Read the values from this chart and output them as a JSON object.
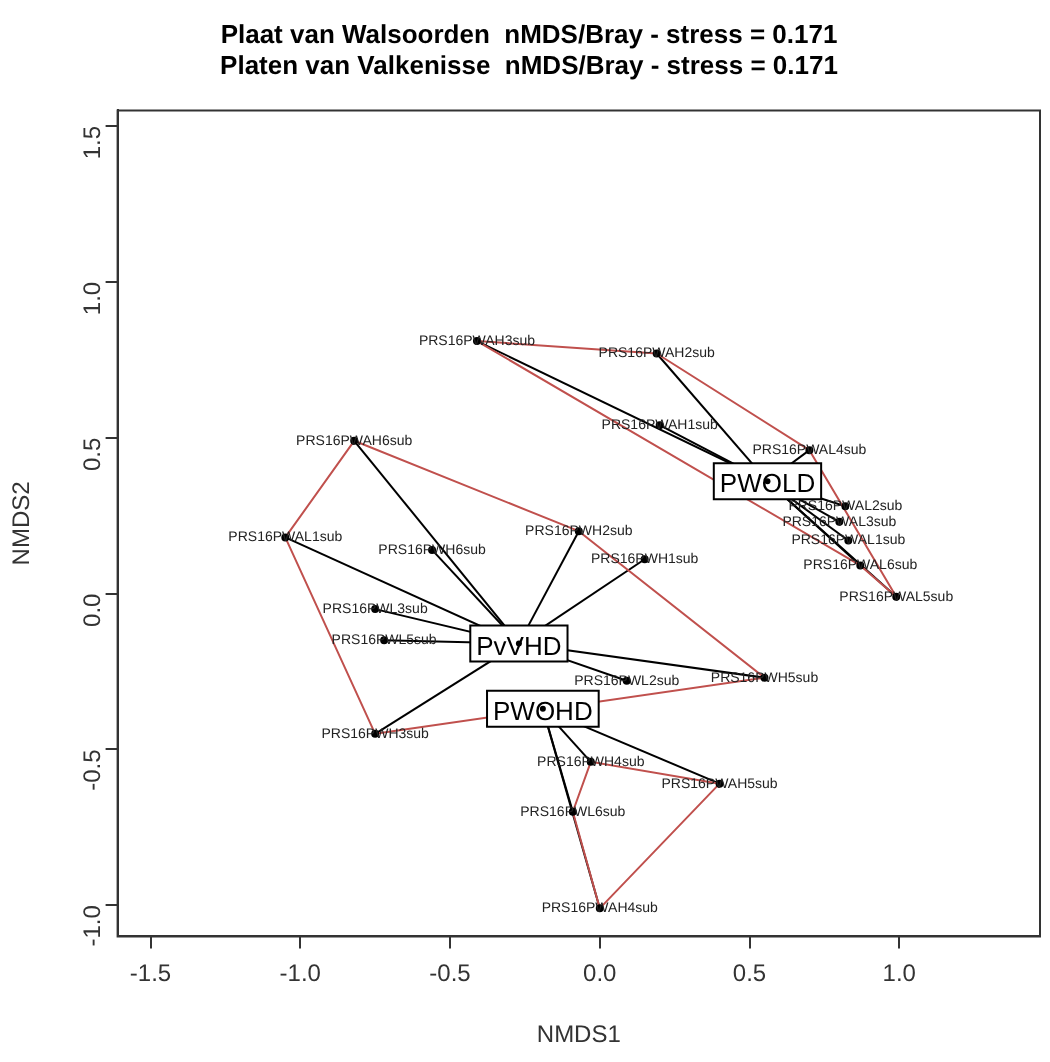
{
  "chart_data": {
    "type": "scatter",
    "title": "Plaat van Walsoorden  nMDS/Bray - stress = 0.171",
    "subtitle": "Platen van Valkenisse  nMDS/Bray - stress = 0.171",
    "xlabel": "NMDS1",
    "ylabel": "NMDS2",
    "xlim": [
      -1.61,
      1.47
    ],
    "ylim": [
      -1.1,
      1.55
    ],
    "xticks": [
      {
        "value": -1.5,
        "label": "-1.5"
      },
      {
        "value": -1.0,
        "label": "-1.0"
      },
      {
        "value": -0.5,
        "label": "-0.5"
      },
      {
        "value": 0.0,
        "label": "0.0"
      },
      {
        "value": 0.5,
        "label": "0.5"
      },
      {
        "value": 1.0,
        "label": "1.0"
      }
    ],
    "yticks": [
      {
        "value": -1.0,
        "label": "-1.0"
      },
      {
        "value": -0.5,
        "label": "-0.5"
      },
      {
        "value": 0.0,
        "label": "0.0"
      },
      {
        "value": 0.5,
        "label": "0.5"
      },
      {
        "value": 1.0,
        "label": "1.0"
      },
      {
        "value": 1.5,
        "label": "1.5"
      }
    ],
    "grid": false,
    "legend": false,
    "marker": "circle",
    "series": [
      {
        "color": "#000000",
        "x": [
          -0.41,
          0.19,
          0.2,
          0.7,
          0.82,
          0.8,
          0.83,
          0.87,
          0.99
        ],
        "values": [
          0.81,
          0.77,
          0.54,
          0.46,
          0.28,
          0.23,
          0.17,
          0.09,
          -0.01
        ],
        "value_labels": [
          "PRS16PWAH3sub",
          "PRS16PWAH2sub",
          "PRS16PWAH1sub",
          "PRS16PWAL4sub",
          "PRS16PWAL2sub",
          "PRS16PWAL3sub",
          "PRS16PWAL1sub",
          "PRS16PWAL6sub",
          "PRS16PWAL5sub"
        ]
      },
      {
        "color": "#000000",
        "x": [
          -0.82,
          -1.05,
          -0.07,
          -0.56,
          0.15,
          -0.75,
          -0.72,
          0.09,
          0.55,
          -0.75
        ],
        "values": [
          0.49,
          0.18,
          0.2,
          0.14,
          0.11,
          -0.05,
          -0.15,
          -0.28,
          -0.27,
          -0.45
        ],
        "value_labels": [
          "PRS16PWAH6sub",
          "PRS16PWAL1sub",
          "PRS16PWH2sub",
          "PRS16PWH6sub",
          "PRS16PWH1sub",
          "PRS16PWL3sub",
          "PRS16PWL5sub",
          "PRS16PWL2sub",
          "PRS16PWH5sub",
          "PRS16PWH3sub"
        ]
      },
      {
        "color": "#000000",
        "x": [
          -0.03,
          0.4,
          -0.09,
          0.0
        ],
        "values": [
          -0.54,
          -0.61,
          -0.7,
          -1.01
        ],
        "value_labels": [
          "PRS16PWH4sub",
          "PRS16PWAH5sub",
          "PRS16PWL6sub",
          "PRS16PWAH4sub"
        ]
      },
      {
        "color": "#000000",
        "x": [
          0.56,
          -0.27,
          -0.19
        ],
        "values": [
          0.36,
          -0.16,
          -0.37
        ],
        "value_labels": [
          "PWOLD",
          "PvVHD",
          "PWOHD"
        ]
      },
      {
        "type": "line",
        "marker": "none",
        "color": "#c0504d",
        "x": [
          -0.41,
          0.19,
          0.7,
          0.99
        ],
        "values": [
          0.81,
          0.77,
          0.46,
          -0.01
        ]
      },
      {
        "type": "line",
        "marker": "none",
        "color": "#c0504d",
        "x": [
          -0.41,
          0.87,
          0.99
        ],
        "values": [
          0.81,
          0.09,
          -0.01
        ]
      },
      {
        "type": "line",
        "marker": "none",
        "color": "#c0504d",
        "x": [
          -1.05,
          -0.82,
          -0.07,
          0.55
        ],
        "values": [
          0.18,
          0.49,
          0.2,
          -0.27
        ]
      },
      {
        "type": "line",
        "marker": "none",
        "color": "#c0504d",
        "x": [
          -1.05,
          -0.75,
          0.55
        ],
        "values": [
          0.18,
          -0.45,
          -0.27
        ]
      },
      {
        "type": "line",
        "marker": "none",
        "color": "#c0504d",
        "x": [
          -0.09,
          -0.03,
          0.4
        ],
        "values": [
          -0.7,
          -0.54,
          -0.61
        ]
      },
      {
        "type": "line",
        "marker": "none",
        "color": "#c0504d",
        "x": [
          -0.09,
          0.0,
          0.4
        ],
        "values": [
          -0.7,
          -1.01,
          -0.61
        ]
      }
    ]
  }
}
